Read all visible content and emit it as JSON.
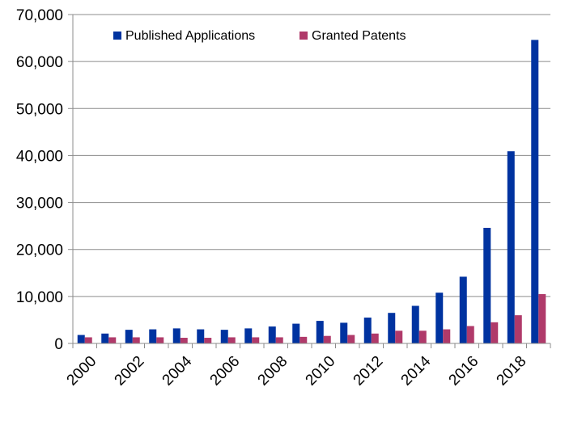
{
  "chart_data": {
    "type": "bar",
    "title": "",
    "xlabel": "",
    "ylabel": "",
    "ylim": [
      0,
      70000
    ],
    "yticks": [
      0,
      10000,
      20000,
      30000,
      40000,
      50000,
      60000,
      70000
    ],
    "ytick_labels": [
      "0",
      "10,000",
      "20,000",
      "30,000",
      "40,000",
      "50,000",
      "60,000",
      "70,000"
    ],
    "categories": [
      "2000",
      "2001",
      "2002",
      "2003",
      "2004",
      "2005",
      "2006",
      "2007",
      "2008",
      "2009",
      "2010",
      "2011",
      "2012",
      "2013",
      "2014",
      "2015",
      "2016",
      "2017",
      "2018",
      "2019"
    ],
    "xtick_labels": [
      "2000",
      "2002",
      "2004",
      "2006",
      "2008",
      "2010",
      "2012",
      "2014",
      "2016",
      "2018"
    ],
    "grid": "horizontal",
    "legend_position": "top",
    "series": [
      {
        "name": "Published Applications",
        "color": "#0033A0",
        "values": [
          1800,
          2100,
          2900,
          3000,
          3200,
          3000,
          2900,
          3200,
          3600,
          4200,
          4800,
          4400,
          5500,
          6500,
          8000,
          10800,
          14200,
          24600,
          40900,
          64600
        ]
      },
      {
        "name": "Granted Patents",
        "color": "#B03A6A",
        "values": [
          1300,
          1300,
          1300,
          1300,
          1200,
          1200,
          1300,
          1300,
          1300,
          1400,
          1600,
          1800,
          2100,
          2700,
          2700,
          3000,
          3700,
          4500,
          6000,
          10500
        ]
      }
    ]
  }
}
